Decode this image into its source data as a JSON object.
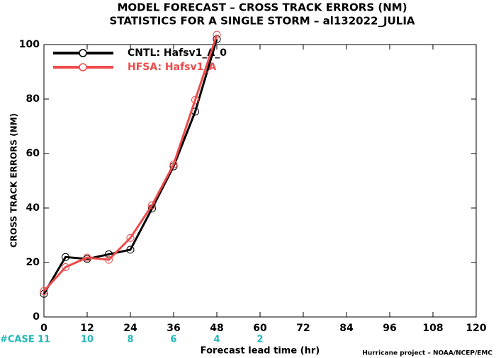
{
  "chart_data": {
    "type": "line",
    "title": "MODEL FORECAST – CROSS TRACK ERRORS (NM)",
    "subtitle": "STATISTICS FOR A SINGLE STORM – al132022_JULIA",
    "x_label": "Forecast lead time (hr)",
    "y_label": "CROSS TRACK ERRORS (NM)",
    "x": [
      0,
      6,
      12,
      18,
      24,
      30,
      36,
      42,
      48
    ],
    "series": [
      {
        "name": "CNTL: Hafsv1_A_0",
        "color": "#000000",
        "values": [
          8.5,
          22,
          21.3,
          23,
          24.7,
          39.8,
          55.3,
          75.4,
          102
        ]
      },
      {
        "name": "HFSA: Hafsv1_A",
        "color": "#ee4b4b",
        "values": [
          9.5,
          18.3,
          21.8,
          21,
          29,
          41,
          56,
          79.7,
          103.6
        ]
      }
    ],
    "xlim": [
      0,
      120
    ],
    "xticks": [
      0,
      12,
      24,
      36,
      48,
      60,
      72,
      84,
      96,
      108,
      120
    ],
    "ylim": [
      0,
      100
    ],
    "yticks": [
      0,
      20,
      40,
      60,
      80,
      100
    ],
    "legend": "upper-left",
    "cases": {
      "label": "#CASE",
      "x": [
        0,
        12,
        24,
        36,
        48,
        60
      ],
      "values": [
        11,
        10,
        8,
        6,
        4,
        2
      ],
      "color": "#22b8b8"
    },
    "footer": "Hurricane project – NOAA/NCEP/EMC"
  }
}
